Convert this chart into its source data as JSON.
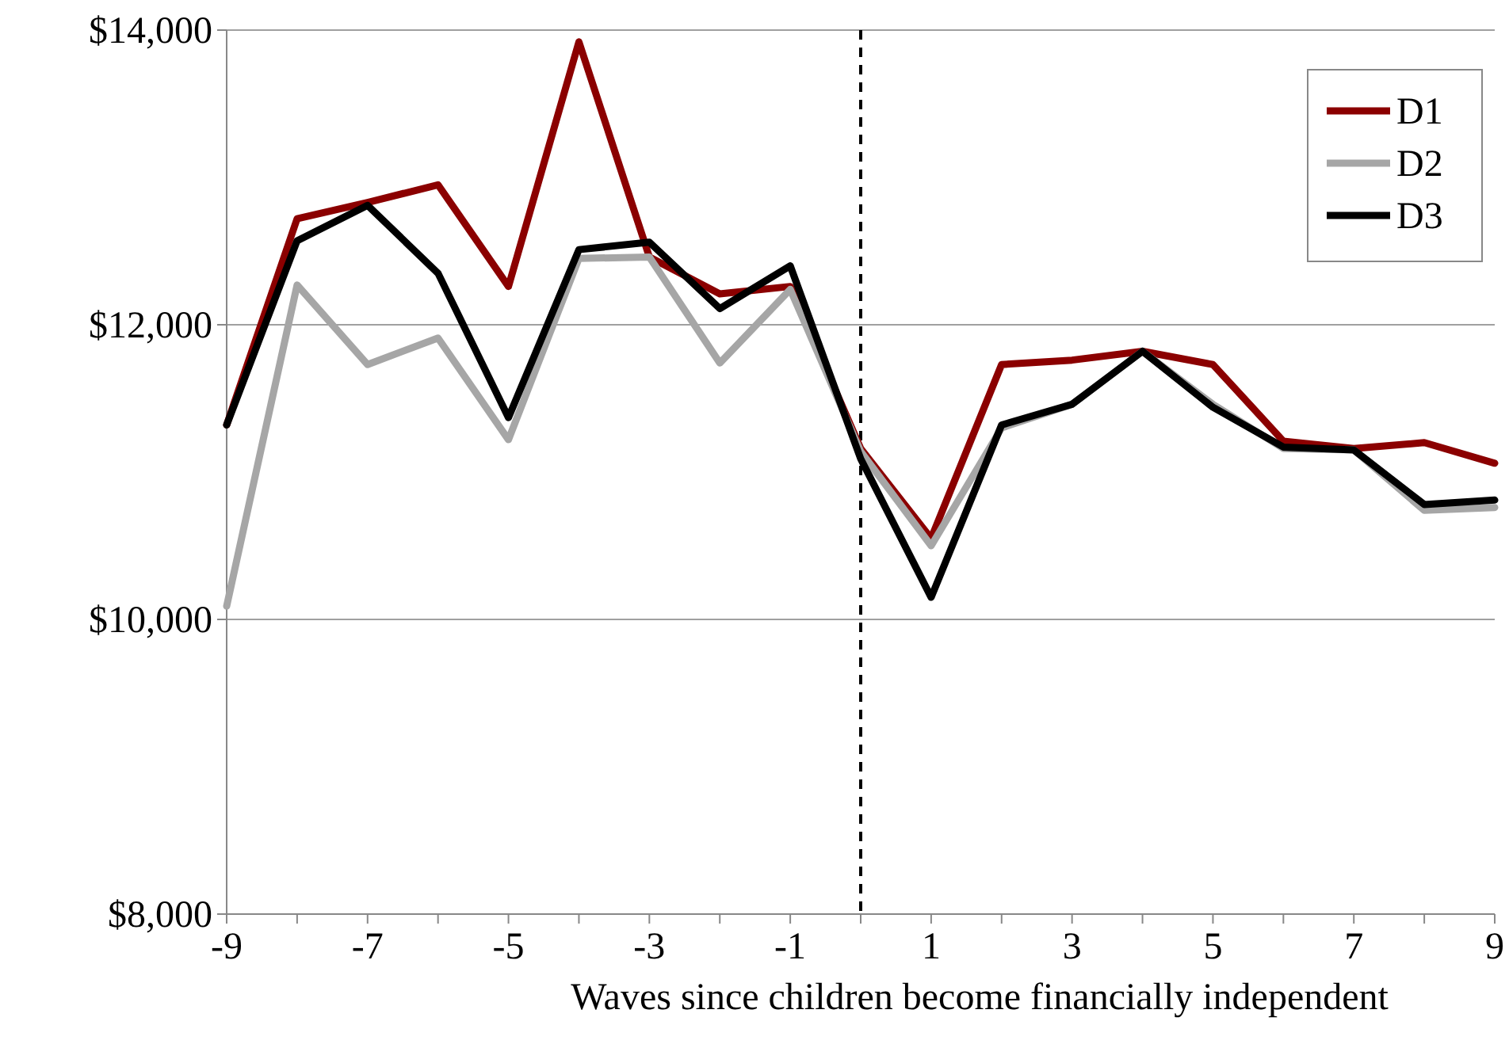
{
  "chart_data": {
    "type": "line",
    "xlabel": "Waves since children become financially independent",
    "x": [
      -9,
      -8,
      -7,
      -6,
      -5,
      -4,
      -3,
      -2,
      -1,
      0,
      1,
      2,
      3,
      4,
      5,
      6,
      7,
      8,
      9
    ],
    "series": [
      {
        "name": "D1",
        "color": "#8b0000",
        "values": [
          11320,
          12720,
          12830,
          12950,
          12260,
          13920,
          12460,
          12210,
          12260,
          11160,
          10550,
          11730,
          11760,
          11820,
          11730,
          11210,
          11160,
          11200,
          11060
        ]
      },
      {
        "name": "D2",
        "color": "#a6a6a6",
        "values": [
          10090,
          12270,
          11730,
          11910,
          11220,
          12450,
          12460,
          11740,
          12240,
          11140,
          10500,
          11300,
          11460,
          11820,
          11460,
          11160,
          11150,
          10740,
          10760
        ]
      },
      {
        "name": "D3",
        "color": "#000000",
        "values": [
          11320,
          12570,
          12810,
          12350,
          11370,
          12510,
          12560,
          12110,
          12400,
          11090,
          10150,
          11320,
          11460,
          11820,
          11440,
          11170,
          11150,
          10780,
          10810
        ]
      }
    ],
    "xlim": [
      -9,
      9
    ],
    "xticks": [
      -9,
      {
        "value": -8,
        "label": null
      },
      -7,
      {
        "value": -6,
        "label": null
      },
      -5,
      {
        "value": -4,
        "label": null
      },
      -3,
      {
        "value": -2,
        "label": null
      },
      -1,
      {
        "value": 0,
        "label": null
      },
      1,
      {
        "value": 2,
        "label": null
      },
      3,
      {
        "value": 4,
        "label": null
      },
      5,
      {
        "value": 6,
        "label": null
      },
      7,
      {
        "value": 8,
        "label": null
      },
      9
    ],
    "ylim": [
      8000,
      14000
    ],
    "yticks": [
      {
        "value": 8000,
        "label": "$8,000"
      },
      {
        "value": 10000,
        "label": "$10,000"
      },
      {
        "value": 12000,
        "label": "$12,000"
      },
      {
        "value": 14000,
        "label": "$14,000"
      }
    ],
    "grid": "y",
    "legend": "top right",
    "marker": "none",
    "line_style": "solid",
    "ref_lines": [
      {
        "axis": "x",
        "value": 0,
        "color": "#000000",
        "line_style": "dashed"
      }
    ]
  }
}
